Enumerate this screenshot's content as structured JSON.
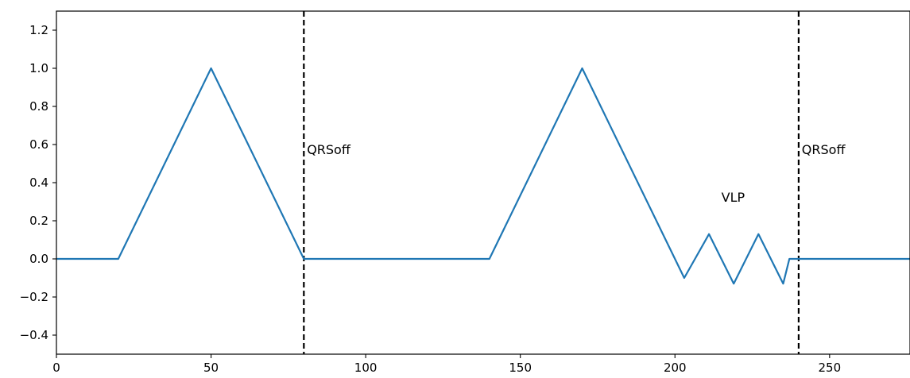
{
  "chart_data": {
    "type": "line",
    "title": "",
    "xlabel": "",
    "ylabel": "",
    "xlim": [
      0,
      276
    ],
    "ylim": [
      -0.5,
      1.3
    ],
    "grid": false,
    "x_ticks": [
      "0",
      "50",
      "100",
      "150",
      "200",
      "250"
    ],
    "x_tick_values": [
      0,
      50,
      100,
      150,
      200,
      250
    ],
    "y_ticks": [
      "−0.4",
      "−0.2",
      "0.0",
      "0.2",
      "0.4",
      "0.6",
      "0.8",
      "1.0",
      "1.2"
    ],
    "y_tick_values": [
      -0.4,
      -0.2,
      0.0,
      0.2,
      0.4,
      0.6,
      0.8,
      1.0,
      1.2
    ],
    "series": [
      {
        "color": "#1f77b4",
        "x": [
          0,
          20,
          50,
          80,
          140,
          170,
          203,
          211,
          219,
          227,
          235,
          237,
          240,
          276
        ],
        "y": [
          0,
          0,
          1.0,
          0,
          0,
          1.0,
          -0.1,
          0.13,
          -0.13,
          0.13,
          -0.13,
          0,
          0,
          0
        ]
      }
    ],
    "vlines": [
      {
        "x": 80,
        "color": "#000000",
        "style": "dashed"
      },
      {
        "x": 240,
        "color": "#000000",
        "style": "dashed"
      }
    ],
    "annotations": [
      {
        "text": "QRSoff",
        "x": 81,
        "y": 0.55
      },
      {
        "text": "QRSoff",
        "x": 241,
        "y": 0.55
      },
      {
        "text": "VLP",
        "x": 215,
        "y": 0.3
      }
    ]
  }
}
